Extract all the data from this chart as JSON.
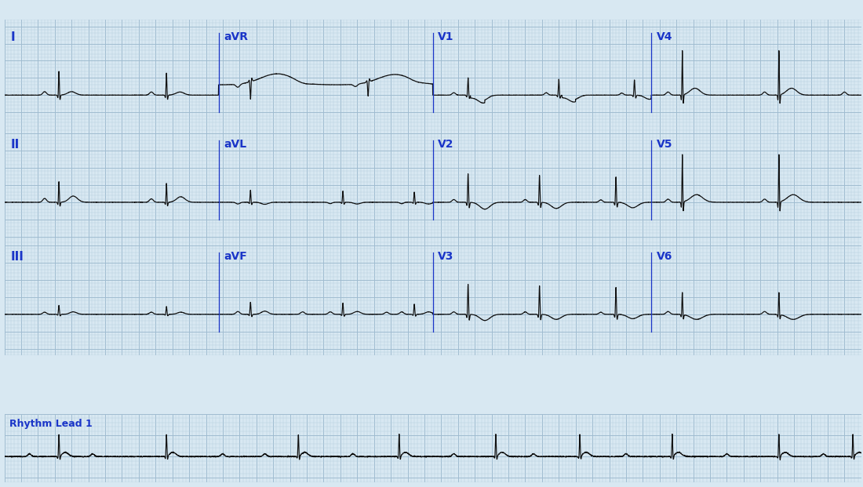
{
  "bg_color": "#d8e8f2",
  "grid_major_color": "#a0bcd0",
  "grid_minor_color": "#b8d0e0",
  "ecg_color": "#101010",
  "label_color": "#1a35c8",
  "fig_width": 11.0,
  "fig_height": 6.21,
  "seg_ends": [
    2.55,
    5.1,
    7.7
  ],
  "T": 10.2,
  "noise_sigma": 0.004,
  "row_label_fontsize": 11,
  "col_label_fontsize": 10
}
